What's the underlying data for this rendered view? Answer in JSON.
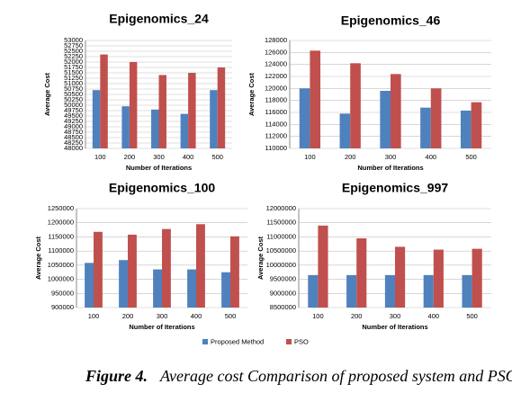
{
  "chart_data": [
    {
      "type": "bar",
      "title": "Epigenomics_24",
      "x_label": "Number of Iterations",
      "y_label": "Average Cost",
      "categories": [
        "100",
        "200",
        "300",
        "400",
        "500"
      ],
      "series": [
        {
          "color": "#4f81bd",
          "values": [
            50700,
            49950,
            49800,
            49600,
            50700
          ]
        },
        {
          "color": "#c0504d",
          "values": [
            52350,
            52000,
            51400,
            51500,
            51750
          ]
        }
      ],
      "ylim": [
        48000,
        53000
      ],
      "yticks": [
        48000,
        48250,
        48500,
        48750,
        49000,
        49250,
        49500,
        49750,
        50000,
        50250,
        50500,
        50750,
        51000,
        51250,
        51500,
        51750,
        52000,
        52250,
        52500,
        52750,
        53000
      ]
    },
    {
      "type": "bar",
      "title": "Epigenomics_46",
      "x_label": "Number of Iterations",
      "y_label": "Average Cost",
      "categories": [
        "100",
        "200",
        "300",
        "400",
        "500"
      ],
      "series": [
        {
          "color": "#4f81bd",
          "values": [
            120000,
            115800,
            119600,
            116800,
            116300
          ]
        },
        {
          "color": "#c0504d",
          "values": [
            126300,
            124200,
            122400,
            120000,
            117700
          ]
        }
      ],
      "ylim": [
        110000,
        128000
      ],
      "yticks": [
        110000,
        112000,
        114000,
        116000,
        118000,
        120000,
        122000,
        124000,
        126000,
        128000
      ]
    },
    {
      "type": "bar",
      "title": "Epigenomics_100",
      "x_label": "Number of Iterations",
      "y_label": "Average Cost",
      "categories": [
        "100",
        "200",
        "300",
        "400",
        "500"
      ],
      "series": [
        {
          "color": "#4f81bd",
          "values": [
            1058000,
            1068000,
            1035000,
            1035000,
            1025000
          ]
        },
        {
          "color": "#c0504d",
          "values": [
            1168000,
            1158000,
            1178000,
            1195000,
            1152000
          ]
        }
      ],
      "ylim": [
        900000,
        1250000
      ],
      "yticks": [
        900000,
        950000,
        1000000,
        1050000,
        1100000,
        1150000,
        1200000,
        1250000
      ]
    },
    {
      "type": "bar",
      "title": "Epigenomics_997",
      "x_label": "Number of Iterations",
      "y_label": "Average Cost",
      "categories": [
        "100",
        "200",
        "300",
        "400",
        "500"
      ],
      "series": [
        {
          "name": "Proposed Method",
          "color": "#4f81bd",
          "values": [
            9650000,
            9650000,
            9650000,
            9650000,
            9650000
          ]
        },
        {
          "name": "PSO",
          "color": "#c0504d",
          "values": [
            11400000,
            10950000,
            10650000,
            10550000,
            10580000
          ]
        }
      ],
      "ylim": [
        8500000,
        12000000
      ],
      "yticks": [
        8500000,
        9000000,
        9500000,
        10000000,
        10500000,
        11000000,
        11500000,
        12000000
      ]
    }
  ],
  "caption": {
    "label": "Figure 4.",
    "text": "Average cost Comparison of proposed system and PSO"
  }
}
